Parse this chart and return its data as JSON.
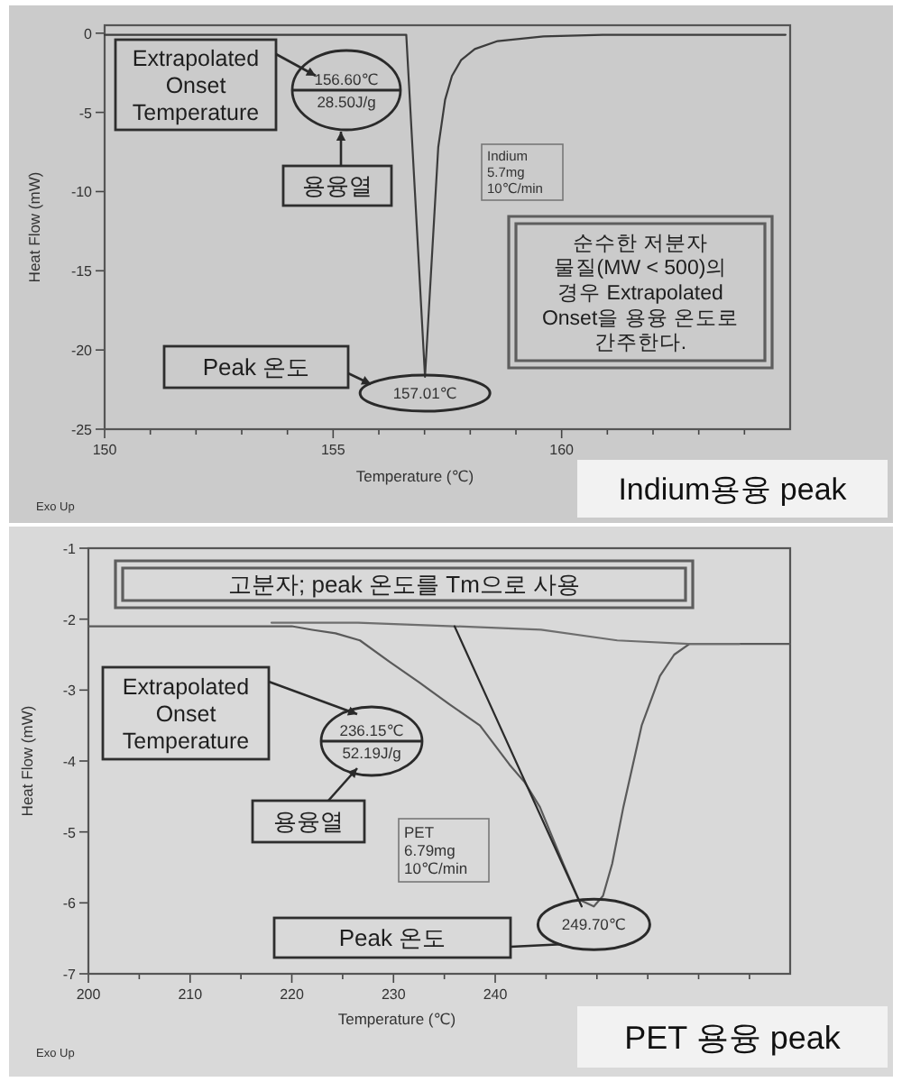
{
  "chart_data": [
    {
      "type": "line",
      "title": "Indium용융 peak",
      "xlabel": "Temperature (℃)",
      "ylabel": "Heat Flow (mW)",
      "series": [
        {
          "color": "#3c3c3c",
          "x": [
            150,
            156.6,
            156.8,
            157.01,
            157.2,
            157.3,
            157.45,
            157.6,
            157.8,
            158.1,
            158.6,
            159.6,
            160.9,
            164.9
          ],
          "values": [
            -0.1,
            -0.1,
            -10.6,
            -21.7,
            -12.2,
            -7.2,
            -4.2,
            -2.7,
            -1.7,
            -1.0,
            -0.5,
            -0.2,
            -0.1,
            -0.1
          ]
        }
      ],
      "xlim": [
        150,
        165
      ],
      "ylim": [
        -25,
        0.5
      ],
      "xticks": [
        150,
        {
          "value": 151,
          "label": null
        },
        {
          "value": 152,
          "label": null
        },
        {
          "value": 153,
          "label": null
        },
        {
          "value": 154,
          "label": null
        },
        155,
        {
          "value": 156,
          "label": null
        },
        {
          "value": 157,
          "label": null
        },
        {
          "value": 158,
          "label": null
        },
        {
          "value": 159,
          "label": null
        },
        160,
        {
          "value": 161,
          "label": null
        },
        {
          "value": 162,
          "label": null
        },
        {
          "value": 163,
          "label": null
        },
        {
          "value": 164,
          "label": null
        }
      ],
      "yticks": [
        -25,
        -20,
        -15,
        -10,
        -5,
        0
      ],
      "annotations": [
        "Extrapolated\nOnset\nTemperature",
        "156.60℃\n28.50J/g",
        "용융열",
        "Indium\n5.7mg\n10℃/min",
        "순수한 저분자\n물질(MW < 500)의\n경우 Extrapolated\nOnset을 용융 온도로\n간주한다.",
        "Peak 온도",
        {
          "text": "157.01℃",
          "x": 157.01,
          "y": -21.7
        },
        "Exo Up"
      ]
    },
    {
      "type": "line",
      "title": "PET 용융 peak",
      "xlabel": "Temperature (℃)",
      "ylabel": "Heat Flow (mW)",
      "series": [
        {
          "color": "#5a5a5a",
          "x": [
            200,
            218,
            220,
            222,
            224.3,
            226.7,
            229.6,
            232.6,
            235.5,
            238.5,
            241.4,
            242.9,
            244.4,
            246.7,
            248.2,
            249.7,
            250.6,
            251.5,
            252.6,
            254.4,
            256.2,
            257.6,
            259.1,
            263.8,
            269
          ],
          "values": [
            -2.1,
            -2.1,
            -2.1,
            -2.15,
            -2.2,
            -2.3,
            -2.6,
            -2.9,
            -3.2,
            -3.5,
            -4.05,
            -4.3,
            -4.65,
            -5.45,
            -5.95,
            -6.05,
            -5.9,
            -5.45,
            -4.65,
            -3.5,
            -2.8,
            -2.5,
            -2.35,
            -2.35,
            -2.35
          ]
        },
        {
          "color": "#6e6e6e",
          "x": [
            218,
            226.5,
            236,
            244.5,
            252,
            259,
            264
          ],
          "values": [
            -2.05,
            -2.05,
            -2.1,
            -2.15,
            -2.3,
            -2.35,
            -2.35
          ]
        },
        {
          "color": "#2a2a2a",
          "x": [
            236,
            248.5
          ],
          "values": [
            -2.1,
            -6.05
          ]
        }
      ],
      "xlim": [
        200,
        269
      ],
      "ylim": [
        -7,
        -1
      ],
      "xticks": [
        200,
        {
          "value": 205,
          "label": null
        },
        210,
        {
          "value": 215,
          "label": null
        },
        220,
        {
          "value": 225,
          "label": null
        },
        230,
        {
          "value": 235,
          "label": null
        },
        240,
        {
          "value": 245,
          "label": null
        },
        {
          "value": 250,
          "label": null
        },
        {
          "value": 255,
          "label": null
        },
        {
          "value": 260,
          "label": null
        },
        {
          "value": 265,
          "label": null
        }
      ],
      "yticks": [
        -7,
        -6,
        -5,
        -4,
        -3,
        -2,
        -1
      ],
      "annotations": [
        "고분자; peak 온도를 Tm으로 사용",
        "Extrapolated\nOnset\nTemperature",
        "236.15℃\n52.19J/g",
        "용융열",
        "PET\n6.79mg\n10℃/min",
        "Peak 온도",
        {
          "text": "249.70℃",
          "x": 249.7,
          "y": -6.05
        },
        "Exo Up"
      ]
    }
  ]
}
